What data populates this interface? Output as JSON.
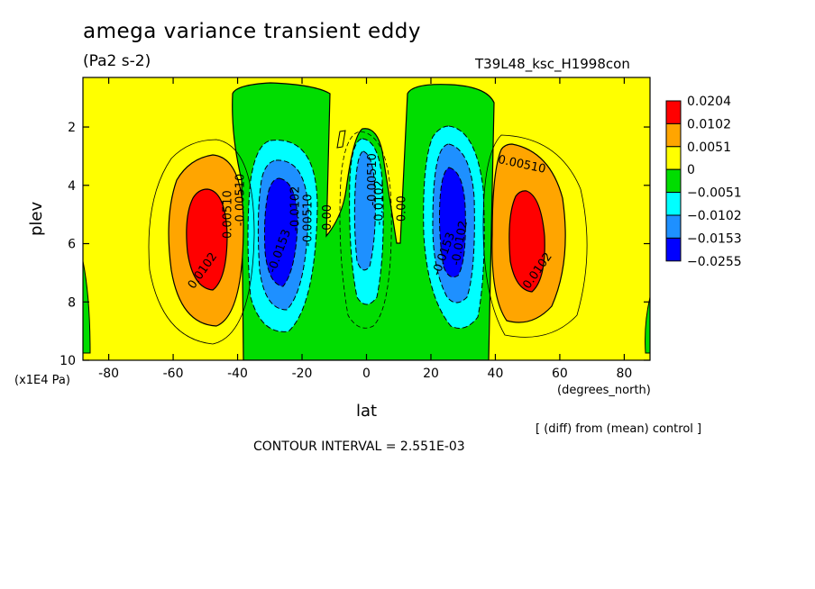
{
  "header": {
    "title": "amega variance transient eddy",
    "units": "(Pa2 s-2)",
    "run_id": "T39L48_ksc_H1998con"
  },
  "footer": {
    "x_units": "(degrees_north)",
    "y_units": "(x1E4 Pa)",
    "note": "[ (diff) from (mean) control ]",
    "contour_interval": "CONTOUR INTERVAL = 2.551E-03"
  },
  "chart_data": {
    "type": "heatmap",
    "title": "amega variance transient eddy",
    "xlabel": "lat",
    "ylabel": "plev",
    "xlim": [
      -88,
      88
    ],
    "ylim": [
      10,
      0.3
    ],
    "x_ticks": [
      -80,
      -60,
      -40,
      -20,
      0,
      20,
      40,
      60,
      80
    ],
    "y_ticks": [
      2,
      4,
      6,
      8,
      10
    ],
    "legend_position": "right",
    "colorbar": {
      "labels": [
        "0.0204",
        "0.0102",
        "0.0051",
        "0",
        "−0.0051",
        "−0.0102",
        "−0.0153",
        "−0.0255"
      ],
      "colors": [
        "#ff0000",
        "#ffa500",
        "#ffff00",
        "#00dd00",
        "#00ffff",
        "#1e90ff",
        "#0000ff"
      ]
    },
    "features": [
      {
        "sign": "positive",
        "center": [
          -50,
          5.8
        ],
        "peak": 0.0204
      },
      {
        "sign": "negative",
        "center": [
          -28,
          5.5
        ],
        "peak": -0.0255
      },
      {
        "sign": "negative",
        "center": [
          0,
          5.0
        ],
        "peak": -0.0153
      },
      {
        "sign": "negative",
        "center": [
          28,
          5.0
        ],
        "peak": -0.0255
      },
      {
        "sign": "positive",
        "center": [
          50,
          5.8
        ],
        "peak": 0.0204
      }
    ],
    "contour_labels": [
      {
        "text": "0.0102",
        "x": -50,
        "y": 7.0,
        "angle": -55
      },
      {
        "text": "0.00510",
        "x": -42,
        "y": 5.0,
        "angle": -90
      },
      {
        "text": "-0.00510",
        "x": -38,
        "y": 4.5,
        "angle": -90
      },
      {
        "text": "-0.0102",
        "x": -21,
        "y": 4.8,
        "angle": -90
      },
      {
        "text": "-0.0153",
        "x": -26,
        "y": 6.3,
        "angle": -70
      },
      {
        "text": "-0.00510",
        "x": -17,
        "y": 5.2,
        "angle": -90
      },
      {
        "text": "0.00",
        "x": -11,
        "y": 5.1,
        "angle": -90
      },
      {
        "text": "-0.00510",
        "x": 3,
        "y": 3.8,
        "angle": -90
      },
      {
        "text": "-0.0102",
        "x": 5,
        "y": 4.6,
        "angle": -90
      },
      {
        "text": "0.00",
        "x": 12,
        "y": 4.8,
        "angle": -90
      },
      {
        "text": "-0.0153",
        "x": 25,
        "y": 6.4,
        "angle": -70
      },
      {
        "text": "-0.0102",
        "x": 30,
        "y": 6.0,
        "angle": -80
      },
      {
        "text": "0.00510",
        "x": 48,
        "y": 3.4,
        "angle": 12
      },
      {
        "text": "0.0102",
        "x": 54,
        "y": 7.0,
        "angle": -55
      }
    ]
  }
}
